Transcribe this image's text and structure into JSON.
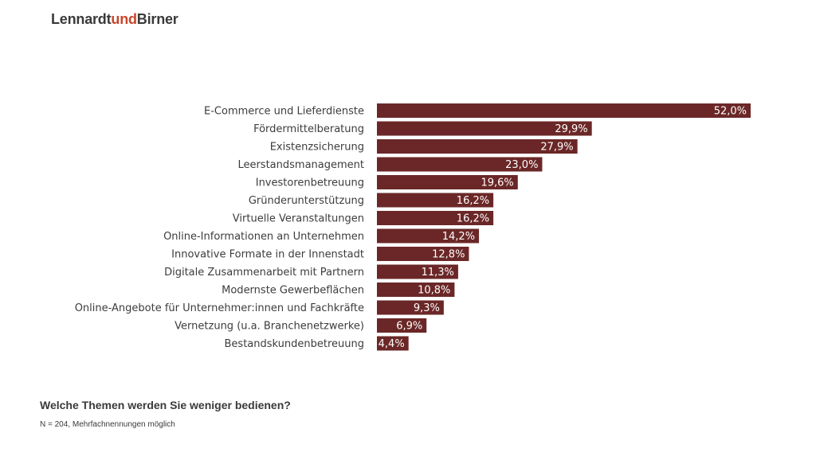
{
  "logo": {
    "part1": "Lennardt",
    "part2": "und",
    "part3": "Birner"
  },
  "colors": {
    "bar": "#6b2727",
    "brand_accent": "#c8462a",
    "text": "#3c3c3c"
  },
  "question": "Welche Themen werden Sie weniger bedienen?",
  "note": "N = 204, Mehrfachnennungen möglich",
  "chart_data": {
    "type": "bar",
    "orientation": "horizontal",
    "categories": [
      "E-Commerce und Lieferdienste",
      "Fördermittelberatung",
      "Existenzsicherung",
      "Leerstandsmanagement",
      "Investorenbetreuung",
      "Gründerunterstützung",
      "Virtuelle Veranstaltungen",
      "Online-Informationen an Unternehmen",
      "Innovative Formate in der Innenstadt",
      "Digitale Zusammenarbeit mit Partnern",
      "Modernste Gewerbeflächen",
      "Online-Angebote für Unternehmer:innen und Fachkräfte",
      "Vernetzung (u.a. Branchenetzwerke)",
      "Bestandskundenbetreuung"
    ],
    "values": [
      52.0,
      29.9,
      27.9,
      23.0,
      19.6,
      16.2,
      16.2,
      14.2,
      12.8,
      11.3,
      10.8,
      9.3,
      6.9,
      4.4
    ],
    "value_labels": [
      "52,0%",
      "29,9%",
      "27,9%",
      "23,0%",
      "19,6%",
      "16,2%",
      "16,2%",
      "14,2%",
      "12,8%",
      "11,3%",
      "10,8%",
      "9,3%",
      "6,9%",
      "4,4%"
    ],
    "unit": "%",
    "xlim": [
      0,
      52
    ],
    "grid": false,
    "legend": "none"
  }
}
